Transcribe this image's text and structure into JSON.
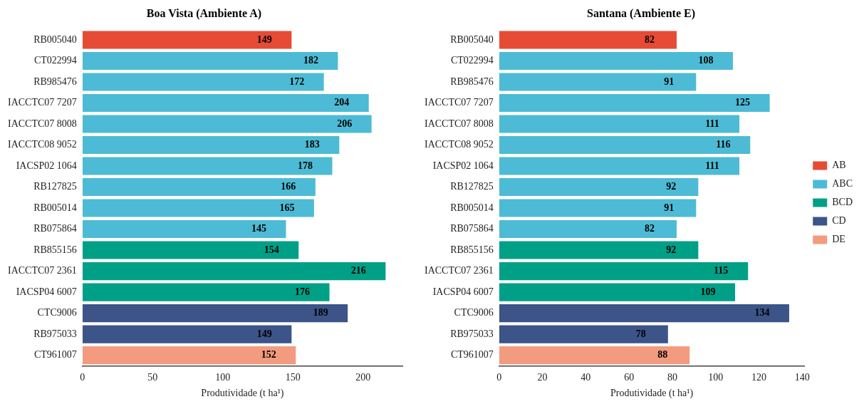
{
  "chart_data": [
    {
      "type": "bar",
      "orientation": "horizontal",
      "title": "Boa Vista (Ambiente A)",
      "xlabel": "Produtividade (t ha¹)",
      "categories": [
        "RB005040",
        "CT022994",
        "RB985476",
        "IACCTC07 7207",
        "IACCTC07 8008",
        "IACCTC08 9052",
        "IACSP02 1064",
        "RB127825",
        "RB005014",
        "RB075864",
        "RB855156",
        "IACCTC07 2361",
        "IACSP04 6007",
        "CTC9006",
        "RB975033",
        "CT961007"
      ],
      "series": [
        {
          "color": "#e64b35",
          "values": [
            149,
            null,
            null,
            null,
            null,
            null,
            null,
            null,
            null,
            null,
            null,
            null,
            null,
            null,
            null,
            null
          ]
        },
        {
          "color": "#4dbbd5",
          "values": [
            null,
            182,
            172,
            204,
            206,
            183,
            178,
            166,
            165,
            145,
            null,
            null,
            null,
            null,
            null,
            null
          ]
        },
        {
          "color": "#00a087",
          "values": [
            null,
            null,
            null,
            null,
            null,
            null,
            null,
            null,
            null,
            null,
            154,
            216,
            176,
            null,
            null,
            null
          ]
        },
        {
          "color": "#3c5488",
          "values": [
            null,
            null,
            null,
            null,
            null,
            null,
            null,
            null,
            null,
            null,
            null,
            null,
            null,
            189,
            149,
            null
          ]
        },
        {
          "color": "#f39b7f",
          "values": [
            null,
            null,
            null,
            null,
            null,
            null,
            null,
            null,
            null,
            null,
            null,
            null,
            null,
            null,
            null,
            152
          ]
        }
      ],
      "xlim": [
        0,
        228
      ],
      "xticks": [
        0,
        50,
        100,
        150,
        200
      ],
      "grid": false,
      "legend": false,
      "data_labels": true
    },
    {
      "type": "bar",
      "orientation": "horizontal",
      "title": "Santana (Ambiente E)",
      "xlabel": "Produtividade (t ha¹)",
      "categories": [
        "RB005040",
        "CT022994",
        "RB985476",
        "IACCTC07 7207",
        "IACCTC07 8008",
        "IACCTC08 9052",
        "IACSP02 1064",
        "RB127825",
        "RB005014",
        "RB075864",
        "RB855156",
        "IACCTC07 2361",
        "IACSP04 6007",
        "CTC9006",
        "RB975033",
        "CT961007"
      ],
      "series": [
        {
          "name": "AB",
          "color": "#e64b35",
          "values": [
            82,
            null,
            null,
            null,
            null,
            null,
            null,
            null,
            null,
            null,
            null,
            null,
            null,
            null,
            null,
            null
          ]
        },
        {
          "name": "ABC",
          "color": "#4dbbd5",
          "values": [
            null,
            108,
            91,
            125,
            111,
            116,
            111,
            92,
            91,
            82,
            null,
            null,
            null,
            null,
            null,
            null
          ]
        },
        {
          "name": "BCD",
          "color": "#00a087",
          "values": [
            null,
            null,
            null,
            null,
            null,
            null,
            null,
            null,
            null,
            null,
            92,
            115,
            109,
            null,
            null,
            null
          ]
        },
        {
          "name": "CD",
          "color": "#3c5488",
          "values": [
            null,
            null,
            null,
            null,
            null,
            null,
            null,
            null,
            null,
            null,
            null,
            null,
            null,
            134,
            78,
            null
          ]
        },
        {
          "name": "DE",
          "color": "#f39b7f",
          "values": [
            null,
            null,
            null,
            null,
            null,
            null,
            null,
            null,
            null,
            null,
            null,
            null,
            null,
            null,
            null,
            88
          ]
        }
      ],
      "xlim": [
        0,
        141
      ],
      "xticks": [
        0,
        20,
        40,
        60,
        80,
        100,
        120,
        140
      ],
      "grid": false,
      "legend": "right",
      "data_labels": true
    }
  ]
}
